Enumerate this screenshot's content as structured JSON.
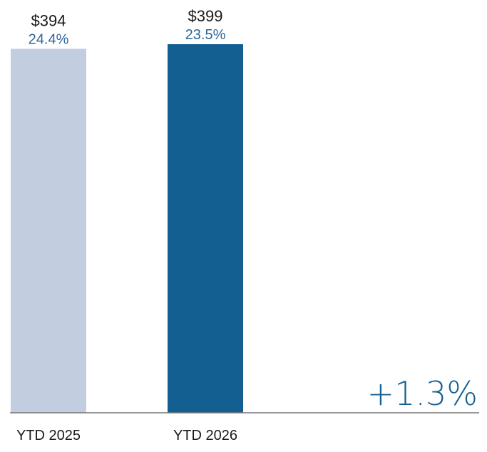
{
  "chart_data": {
    "type": "bar",
    "categories": [
      "YTD 2025",
      "YTD 2026"
    ],
    "values": [
      394,
      399
    ],
    "value_labels": [
      "$394",
      "$399"
    ],
    "percent_labels": [
      "24.4%",
      "23.5%"
    ],
    "bar_colors": [
      "#c2cde0",
      "#135f91"
    ],
    "percent_label_color": "#2a679b",
    "change_label": "+1.3%",
    "change_label_color": "#135f91",
    "axis_color": "#777777",
    "title": "",
    "xlabel": "",
    "ylabel": "",
    "ylim": [
      0,
      399
    ],
    "grid": false,
    "legend": "none"
  }
}
